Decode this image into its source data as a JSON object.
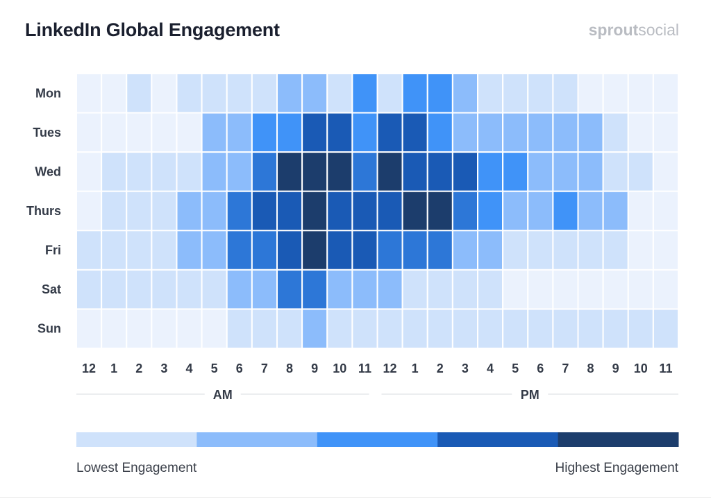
{
  "header": {
    "title": "LinkedIn Global Engagement",
    "brand_part1": "sprout",
    "brand_part2": "social"
  },
  "legend": {
    "low_label": "Lowest Engagement",
    "high_label": "Highest Engagement",
    "colors": [
      "#cfe2fb",
      "#8cbcfb",
      "#4093f8",
      "#1a5ab5",
      "#1c3d6c"
    ]
  },
  "chart_data": {
    "type": "heatmap",
    "title": "LinkedIn Global Engagement",
    "y_categories": [
      "Mon",
      "Tues",
      "Wed",
      "Thurs",
      "Fri",
      "Sat",
      "Sun"
    ],
    "x_categories": [
      "12",
      "1",
      "2",
      "3",
      "4",
      "5",
      "6",
      "7",
      "8",
      "9",
      "10",
      "11",
      "12",
      "1",
      "2",
      "3",
      "4",
      "5",
      "6",
      "7",
      "8",
      "9",
      "10",
      "11"
    ],
    "x_groups": [
      {
        "label": "AM",
        "from": 0,
        "to": 11
      },
      {
        "label": "PM",
        "from": 12,
        "to": 23
      }
    ],
    "level_range": [
      0,
      5
    ],
    "values": [
      [
        0,
        0,
        1,
        0,
        1,
        1,
        1,
        1,
        2,
        2,
        1,
        3,
        1,
        3,
        3,
        2,
        1,
        1,
        1,
        1,
        0,
        0,
        0,
        0
      ],
      [
        0,
        0,
        0,
        0,
        0,
        2,
        2,
        3,
        3,
        4,
        4,
        3,
        4,
        4,
        3,
        2,
        2,
        2,
        2,
        2,
        2,
        1,
        0,
        0
      ],
      [
        0,
        1,
        1,
        1,
        1,
        2,
        2,
        3.5,
        5,
        5,
        5,
        3.5,
        5,
        4,
        4,
        4,
        3,
        3,
        2,
        2,
        2,
        1,
        1,
        0
      ],
      [
        0,
        1,
        1,
        1,
        2,
        2,
        3.5,
        4,
        4,
        5,
        4,
        4,
        4,
        5,
        5,
        3.5,
        3,
        2,
        2,
        3,
        2,
        2,
        0,
        0
      ],
      [
        1,
        1,
        1,
        1,
        2,
        2,
        3.5,
        3.5,
        4,
        5,
        4,
        4,
        3.5,
        3.5,
        3.5,
        2,
        2,
        1,
        1,
        1,
        1,
        1,
        0,
        0
      ],
      [
        1,
        1,
        1,
        1,
        1,
        1,
        2,
        2,
        3.5,
        3.5,
        2,
        2,
        2,
        1,
        1,
        1,
        1,
        0,
        0,
        0,
        0,
        0,
        0,
        0
      ],
      [
        0,
        0,
        0,
        0,
        0,
        0,
        1,
        1,
        1,
        2,
        1,
        1,
        1,
        1,
        1,
        1,
        1,
        1,
        1,
        1,
        1,
        1,
        1,
        1
      ]
    ]
  }
}
